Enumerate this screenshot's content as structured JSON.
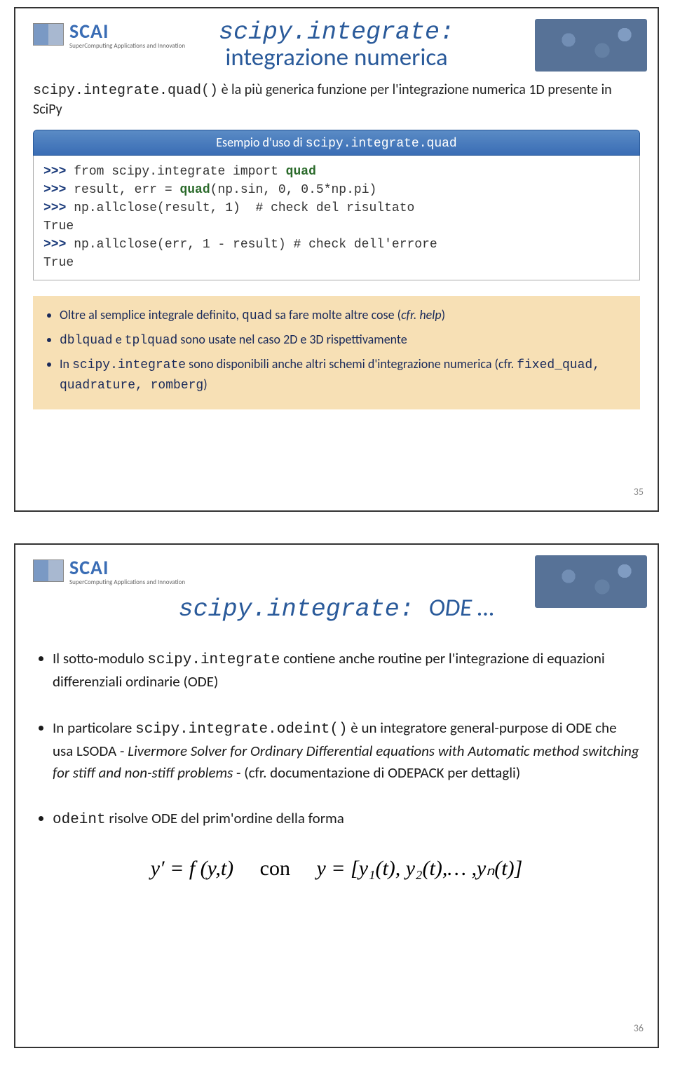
{
  "logo": {
    "name": "SCAI",
    "sub": "SuperComputing Applications and Innovation"
  },
  "slide1": {
    "title_code": "scipy.integrate:",
    "title_text": "integrazione numerica",
    "intro_pre": "scipy.integrate.quad()",
    "intro_post": " è la più generica funzione per l'integrazione numerica 1D presente in SciPy",
    "example_label": "Esempio d'uso di ",
    "example_code": "scipy.integrate.quad",
    "code": {
      "l1a": ">>> ",
      "l1b": "from scipy.integrate import ",
      "l1c": "quad",
      "l2a": ">>> ",
      "l2b": "result, err = ",
      "l2c": "quad",
      "l2d": "(np.sin, 0, 0.5*np.pi)",
      "l3a": ">>> ",
      "l3b": "np.allclose(result, 1)  # check del risultato",
      "l3r": "True",
      "l4a": ">>> ",
      "l4b": "np.allclose(err, 1 - result) # check dell'errore",
      "l4r": "True"
    },
    "hints": {
      "h1a": "Oltre al semplice integrale definito, ",
      "h1b": "quad",
      "h1c": " sa fare molte altre cose (",
      "h1d": "cfr. help",
      "h1e": ")",
      "h2a": "dblquad",
      "h2b": " e ",
      "h2c": "tplquad",
      "h2d": " sono usate nel caso 2D e 3D rispettivamente",
      "h3a": "In ",
      "h3b": "scipy.integrate",
      "h3c": " sono disponibili anche altri schemi d'integrazione numerica (cfr. ",
      "h3d": "fixed_quad, quadrature, romberg",
      "h3e": ")"
    },
    "page": "35"
  },
  "slide2": {
    "title": "scipy.integrate: ",
    "title_tail": "ODE …",
    "b1a": "Il sotto-modulo ",
    "b1b": "scipy.integrate",
    "b1c": " contiene anche routine per l'integrazione di equazioni differenziali ordinarie (ODE)",
    "b2a": "In particolare ",
    "b2b": "scipy.integrate.odeint()",
    "b2c": " è un integratore general-purpose di ODE che usa LSODA - ",
    "b2d": "Livermore Solver for Ordinary Differential equations with Automatic method switching for stiff and non-stiff problems",
    "b2e": " - (cfr. documentazione di ODEPACK per dettagli)",
    "b3a": "odeint",
    "b3b": " risolve ODE del prim'ordine della forma",
    "eq_lhs": "y′ = f (y,t)",
    "eq_mid": "con",
    "eq_rhs": "y = [y₁(t), y₂(t),… ,yₙ(t)]",
    "page": "36"
  }
}
